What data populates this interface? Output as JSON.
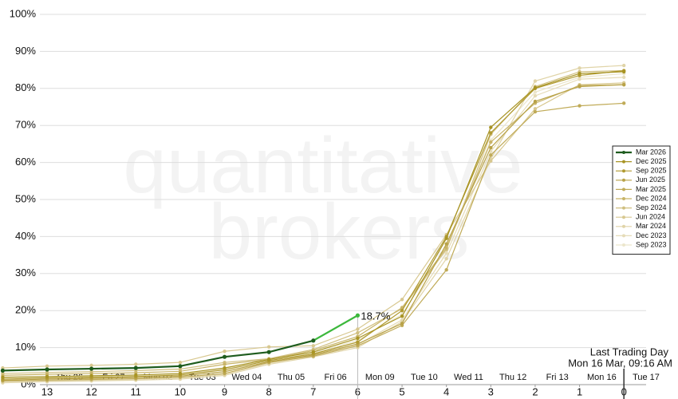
{
  "chart_data": {
    "type": "line",
    "watermark": [
      "quantitative",
      "brokers"
    ],
    "annotation": [
      "Last Trading Day",
      "Mon 16 Mar, 09:16 AM"
    ],
    "x": [
      14,
      13,
      12,
      11,
      10,
      9,
      8,
      7,
      6,
      5,
      4,
      3,
      2,
      1,
      0
    ],
    "xlim": [
      14,
      -0.5
    ],
    "xticks": [
      13,
      12,
      11,
      10,
      9,
      8,
      7,
      6,
      5,
      4,
      3,
      2,
      1,
      0
    ],
    "x2ticks": [
      {
        "value": 12.5,
        "label": "Thu 26"
      },
      {
        "value": 11.5,
        "label": "Fri 27"
      },
      {
        "value": 10.5,
        "label": "Mon 02"
      },
      {
        "value": 9.5,
        "label": "Tue 03"
      },
      {
        "value": 8.5,
        "label": "Wed 04"
      },
      {
        "value": 7.5,
        "label": "Thu 05"
      },
      {
        "value": 6.5,
        "label": "Fri 06"
      },
      {
        "value": 5.5,
        "label": "Mon 09"
      },
      {
        "value": 4.5,
        "label": "Tue 10"
      },
      {
        "value": 3.5,
        "label": "Wed 11"
      },
      {
        "value": 2.5,
        "label": "Thu 12"
      },
      {
        "value": 1.5,
        "label": "Fri 13"
      },
      {
        "value": 0.5,
        "label": "Mon 16"
      },
      {
        "value": -0.5,
        "label": "Tue 17"
      }
    ],
    "ylim": [
      0,
      100
    ],
    "yticks": [
      {
        "value": 0,
        "label": "0%"
      },
      {
        "value": 10,
        "label": "10%"
      },
      {
        "value": 20,
        "label": "20%"
      },
      {
        "value": 30,
        "label": "30%"
      },
      {
        "value": 40,
        "label": "40%"
      },
      {
        "value": 50,
        "label": "50%"
      },
      {
        "value": 60,
        "label": "60%"
      },
      {
        "value": 70,
        "label": "70%"
      },
      {
        "value": 80,
        "label": "80%"
      },
      {
        "value": 90,
        "label": "90%"
      },
      {
        "value": 100,
        "label": "100%"
      }
    ],
    "grid": true,
    "legend": "right",
    "last_segment_color": "#3cb83c",
    "series": [
      {
        "name": "Mar 2026",
        "color": "#1e5c1e",
        "values": [
          3.8,
          4.1,
          4.3,
          4.5,
          5.0,
          7.5,
          8.8,
          11.9,
          18.7,
          null,
          null,
          null,
          null,
          null,
          null
        ],
        "value_labels": [
          null,
          null,
          null,
          null,
          null,
          null,
          null,
          null,
          "18.7%",
          null,
          null,
          null,
          null,
          null,
          null
        ]
      },
      {
        "name": "Dec 2025",
        "color": "#a89424",
        "values": [
          2.0,
          2.2,
          2.4,
          2.6,
          3.0,
          4.5,
          6.8,
          8.8,
          12.5,
          18.5,
          39.5,
          69.5,
          80.2,
          84.0,
          84.5
        ]
      },
      {
        "name": "Sep 2025",
        "color": "#b09a30",
        "values": [
          1.5,
          1.8,
          2.0,
          2.2,
          2.6,
          4.0,
          6.5,
          8.3,
          11.5,
          20.0,
          40.0,
          68.0,
          80.0,
          83.5,
          84.8
        ]
      },
      {
        "name": "Jun 2025",
        "color": "#b8a248",
        "values": [
          1.2,
          1.5,
          1.7,
          1.9,
          2.3,
          3.5,
          6.2,
          8.0,
          11.0,
          16.5,
          38.0,
          64.0,
          76.5,
          80.5,
          81.0
        ]
      },
      {
        "name": "Mar 2025",
        "color": "#c0ab58",
        "values": [
          1.0,
          1.2,
          1.4,
          1.6,
          2.0,
          3.0,
          6.0,
          7.7,
          10.5,
          16.0,
          31.0,
          62.0,
          73.7,
          75.3,
          76.0
        ]
      },
      {
        "name": "Dec 2024",
        "color": "#c8b468",
        "values": [
          2.5,
          2.8,
          3.0,
          3.2,
          3.6,
          5.5,
          6.8,
          9.2,
          13.0,
          20.8,
          37.0,
          65.5,
          76.0,
          80.8,
          81.0
        ]
      },
      {
        "name": "Sep 2024",
        "color": "#d0bf80",
        "values": [
          3.0,
          3.3,
          3.5,
          3.8,
          4.2,
          6.0,
          7.0,
          9.5,
          14.0,
          20.5,
          36.5,
          67.6,
          80.5,
          84.5,
          84.8
        ]
      },
      {
        "name": "Jun 2024",
        "color": "#d8c890",
        "values": [
          4.5,
          5.0,
          5.2,
          5.5,
          6.0,
          9.0,
          10.2,
          10.5,
          15.0,
          23.0,
          40.5,
          60.4,
          74.5,
          81.0,
          81.5
        ]
      },
      {
        "name": "Mar 2024",
        "color": "#e0d4a8",
        "values": [
          0.5,
          0.8,
          1.0,
          1.2,
          1.5,
          2.5,
          5.5,
          7.5,
          10.0,
          17.0,
          34.0,
          61.0,
          82.0,
          85.5,
          86.2
        ]
      },
      {
        "name": "Dec 2023",
        "color": "#e6dcb8",
        "values": [
          0.8,
          1.0,
          1.2,
          1.4,
          1.8,
          2.8,
          5.8,
          7.8,
          10.8,
          17.5,
          35.5,
          63.0,
          78.0,
          82.5,
          83.0
        ]
      },
      {
        "name": "Sep 2023",
        "color": "#ece6cc",
        "values": [
          1.8,
          2.0,
          2.2,
          2.4,
          2.8,
          4.2,
          6.5,
          8.5,
          12.0,
          19.0,
          37.5,
          66.0,
          79.0,
          83.0,
          84.0
        ]
      }
    ]
  }
}
